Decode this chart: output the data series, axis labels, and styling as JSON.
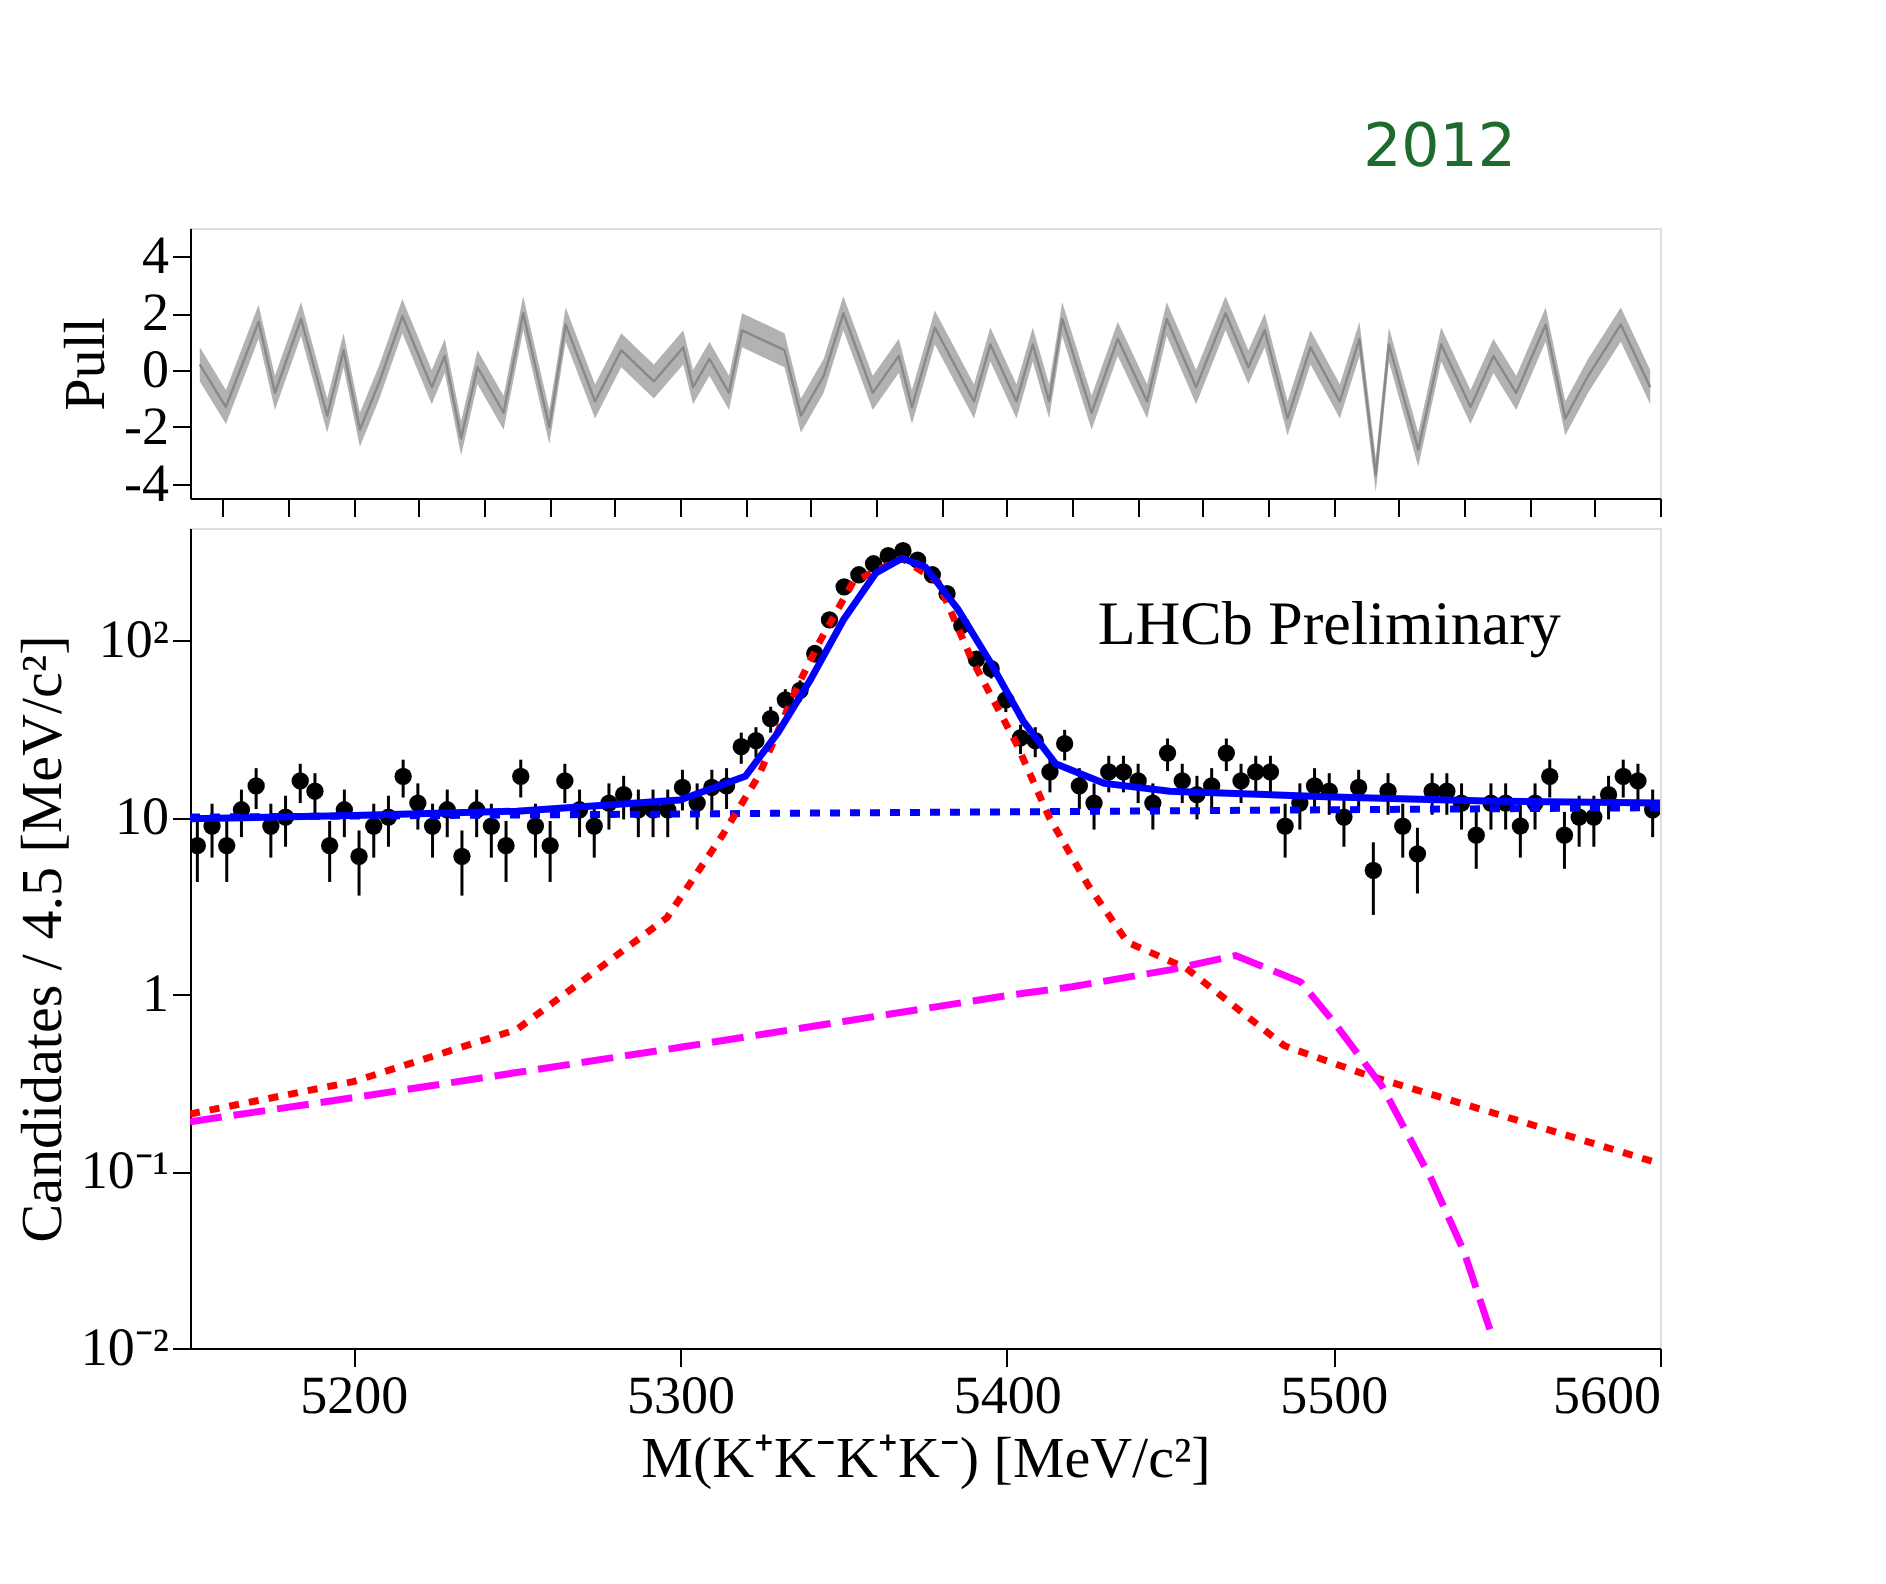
{
  "chart_data": [
    {
      "type": "line",
      "ylabel": "Pull",
      "annotations": [
        "2012"
      ],
      "xlim": [
        5150,
        5600
      ],
      "ylim": [
        -4.5,
        5
      ],
      "yticks": [
        -4,
        -2,
        0,
        2,
        4
      ],
      "tick_labels": "y",
      "series": [
        {
          "color": "#888888",
          "x": [
            5153,
            5161,
            5171,
            5176,
            5184,
            5192,
            5197,
            5202,
            5208,
            5215,
            5224,
            5228,
            5233,
            5238,
            5246,
            5252,
            5260,
            5265,
            5274,
            5282,
            5292,
            5301,
            5304,
            5309,
            5315,
            5319,
            5332,
            5337,
            5344,
            5350,
            5359,
            5367,
            5371,
            5378,
            5390,
            5395,
            5403,
            5408,
            5413,
            5417,
            5426,
            5434,
            5443,
            5449,
            5458,
            5467,
            5474,
            5479,
            5486,
            5493,
            5502,
            5508,
            5513,
            5517,
            5526,
            5533,
            5542,
            5549,
            5556,
            5565,
            5571,
            5578,
            5588,
            5597
          ],
          "values": [
            0.2,
            -1.3,
            1.7,
            -0.8,
            1.8,
            -1.6,
            0.7,
            -2.1,
            -0.4,
            1.9,
            -0.6,
            0.5,
            -2.4,
            0.1,
            -1.5,
            2.0,
            -2.0,
            1.6,
            -1.1,
            0.7,
            -0.4,
            0.8,
            -0.6,
            0.4,
            -0.8,
            1.4,
            0.7,
            -1.6,
            -0.2,
            2.0,
            -0.8,
            0.5,
            -1.3,
            1.5,
            -1.1,
            0.9,
            -1.1,
            0.9,
            -1.1,
            1.8,
            -1.5,
            1.1,
            -1.1,
            1.8,
            -0.6,
            2.0,
            0.1,
            1.4,
            -1.7,
            0.8,
            -1.1,
            1.1,
            -3.7,
            0.9,
            -2.8,
            0.9,
            -1.3,
            0.5,
            -0.8,
            1.6,
            -1.7,
            -0.2,
            1.6,
            -0.6
          ],
          "lower": [
            -0.4,
            -1.9,
            1.1,
            -1.4,
            1.2,
            -2.2,
            0.1,
            -2.7,
            -1.0,
            1.3,
            -1.2,
            -0.1,
            -3.0,
            -0.5,
            -2.1,
            1.4,
            -2.6,
            1.0,
            -1.7,
            0.1,
            -1.0,
            0.2,
            -1.2,
            -0.2,
            -1.4,
            0.8,
            0.1,
            -2.2,
            -0.8,
            1.4,
            -1.4,
            -0.1,
            -1.9,
            0.9,
            -1.7,
            0.3,
            -1.7,
            0.3,
            -1.7,
            1.2,
            -2.1,
            0.5,
            -1.7,
            1.2,
            -1.2,
            1.4,
            -0.5,
            0.8,
            -2.3,
            0.2,
            -1.7,
            0.5,
            -4.3,
            0.3,
            -3.4,
            0.3,
            -1.9,
            -0.1,
            -1.4,
            1.0,
            -2.3,
            -0.8,
            1.0,
            -1.2
          ],
          "upper": [
            0.8,
            -0.7,
            2.3,
            -0.2,
            2.4,
            -1.0,
            1.3,
            -1.5,
            0.2,
            2.5,
            0.0,
            1.1,
            -1.8,
            0.7,
            -0.9,
            2.6,
            -1.4,
            2.2,
            -0.5,
            1.3,
            0.2,
            1.4,
            0.0,
            1.0,
            -0.2,
            2.0,
            1.3,
            -1.0,
            0.4,
            2.6,
            -0.2,
            1.1,
            -0.7,
            2.1,
            -0.5,
            1.5,
            -0.5,
            1.5,
            -0.5,
            2.4,
            -0.9,
            1.7,
            -0.5,
            2.4,
            0.0,
            2.6,
            0.7,
            2.0,
            -1.1,
            1.4,
            -0.5,
            1.7,
            -3.1,
            1.5,
            -2.2,
            1.5,
            -0.7,
            1.1,
            -0.2,
            2.2,
            -1.1,
            0.4,
            2.2,
            0.0
          ]
        }
      ]
    },
    {
      "type": "line",
      "xlabel": "M(K⁺K⁻K⁺K⁻) [MeV/c²]",
      "ylabel": "Candidates / 4.5 [MeV/c²]",
      "log": true,
      "annotations": [
        "LHCb Preliminary"
      ],
      "xlim": [
        5150,
        5600
      ],
      "xticks": [
        5200,
        5300,
        5400,
        5500,
        5600
      ],
      "ylim": [
        0.01,
        430
      ],
      "yticks": [
        {
          "value": 0.01,
          "label": "10⁻²"
        },
        {
          "value": 0.1,
          "label": "10⁻¹"
        },
        1,
        10,
        {
          "value": 100,
          "label": "10²"
        }
      ],
      "series": [
        {
          "type": "scatter",
          "marker": "circle",
          "color": "#000000",
          "x": [
            5152.25,
            5156.75,
            5161.25,
            5165.75,
            5170.25,
            5174.75,
            5179.25,
            5183.75,
            5188.25,
            5192.75,
            5197.25,
            5201.75,
            5206.25,
            5210.75,
            5215.25,
            5219.75,
            5224.25,
            5228.75,
            5233.25,
            5237.75,
            5242.25,
            5246.75,
            5251.25,
            5255.75,
            5260.25,
            5264.75,
            5269.25,
            5273.75,
            5278.25,
            5282.75,
            5287.25,
            5291.75,
            5296.25,
            5300.75,
            5305.25,
            5309.75,
            5314.25,
            5318.75,
            5323.25,
            5327.75,
            5332.25,
            5336.75,
            5341.25,
            5345.75,
            5350.25,
            5354.75,
            5359.25,
            5363.75,
            5368.25,
            5372.75,
            5377.25,
            5381.75,
            5386.25,
            5390.75,
            5395.25,
            5399.75,
            5404.25,
            5408.75,
            5413.25,
            5417.75,
            5422.25,
            5426.75,
            5431.25,
            5435.75,
            5440.25,
            5444.75,
            5449.25,
            5453.75,
            5458.25,
            5462.75,
            5467.25,
            5471.75,
            5476.25,
            5480.75,
            5485.25,
            5489.75,
            5494.25,
            5498.75,
            5503.25,
            5507.75,
            5512.25,
            5516.75,
            5521.25,
            5525.75,
            5530.25,
            5534.75,
            5539.25,
            5543.75,
            5548.25,
            5552.75,
            5557.25,
            5561.75,
            5566.25,
            5570.75,
            5575.25,
            5579.75,
            5584.25,
            5588.75,
            5593.25,
            5597.75
          ],
          "values": [
            6.9,
            8.9,
            6.9,
            11,
            15,
            8.9,
            10,
            16,
            14,
            6.9,
            11,
            6,
            8.9,
            10,
            17,
            12,
            8.9,
            11,
            6,
            11,
            8.9,
            6.9,
            17,
            8.9,
            6.9,
            16,
            11,
            8.9,
            12,
            13.4,
            11,
            11,
            11,
            14.7,
            12,
            14.7,
            15,
            25,
            27,
            36,
            46,
            52,
            84,
            130,
            200,
            234,
            270,
            300,
            320,
            283,
            234,
            183,
            121,
            78,
            69,
            46,
            28,
            27,
            18,
            26,
            15,
            12,
            18,
            18,
            16,
            12,
            23,
            16,
            13.4,
            15,
            23,
            16,
            18,
            18,
            8.9,
            12,
            15,
            14,
            10,
            14.7,
            5,
            14,
            8.9,
            6.2,
            14,
            14,
            12,
            7.9,
            12,
            12,
            8.9,
            12,
            17,
            7.9,
            10,
            10,
            13.4,
            17,
            16,
            11
          ],
          "errors": [
            2.6,
            3,
            2.6,
            3.3,
            3.9,
            3,
            3.2,
            4,
            3.7,
            2.6,
            3.3,
            2.4,
            3,
            3.2,
            4.1,
            3.5,
            3,
            3.3,
            2.4,
            3.3,
            3,
            2.6,
            4.1,
            3,
            2.6,
            4,
            3.3,
            3,
            3.5,
            3.7,
            3.3,
            3.3,
            3.3,
            3.8,
            3.5,
            3.8,
            3.9,
            5,
            5.2,
            6,
            6.8,
            7.2,
            9.2,
            11.4,
            14,
            15.3,
            16.4,
            17.3,
            17.9,
            16.8,
            15.3,
            13.5,
            11,
            8.8,
            8.3,
            6.8,
            5.3,
            5.2,
            4.2,
            5.1,
            3.9,
            3.5,
            4.2,
            4.2,
            4,
            3.5,
            4.8,
            4,
            3.7,
            3.9,
            4.8,
            4,
            4.2,
            4.2,
            3,
            3.5,
            3.9,
            3.7,
            3.2,
            3.8,
            2.2,
            3.7,
            3,
            2.5,
            3.7,
            3.7,
            3.5,
            2.8,
            3.5,
            3.5,
            3,
            3.5,
            4.1,
            2.8,
            3.2,
            3.2,
            3.7,
            4.1,
            4,
            3.3
          ]
        },
        {
          "color": "#0000ff",
          "line_style": "dotted",
          "x": [
            5150,
            5600
          ],
          "values": [
            10,
            11.3
          ]
        },
        {
          "color": "#ff0000",
          "line_style": "dotted",
          "x": [
            5150,
            5200,
            5250,
            5272,
            5296,
            5313,
            5324,
            5336,
            5343,
            5353,
            5368,
            5379,
            5389,
            5403,
            5413,
            5425,
            5437,
            5455,
            5485,
            5510,
            5550,
            5600
          ],
          "values": [
            0.21,
            0.32,
            0.63,
            1.26,
            2.7,
            7.9,
            17,
            55,
            100,
            213,
            290,
            213,
            80,
            26,
            10,
            4.1,
            1.96,
            1.4,
            0.51,
            0.35,
            0.21,
            0.11
          ]
        },
        {
          "color": "#ff00ff",
          "line_style": "dashed",
          "x": [
            5150,
            5200,
            5250,
            5300,
            5350,
            5400,
            5420,
            5450,
            5470,
            5490,
            5500,
            5515,
            5530,
            5540,
            5548
          ],
          "values": [
            0.19,
            0.26,
            0.36,
            0.5,
            0.7,
            0.98,
            1.1,
            1.37,
            1.65,
            1.17,
            0.7,
            0.3,
            0.09,
            0.035,
            0.0126
          ]
        },
        {
          "color": "#0000ff",
          "line_style": "solid",
          "x": [
            5150,
            5200,
            5250,
            5300,
            5320,
            5330,
            5340,
            5350,
            5360,
            5368,
            5375,
            5385,
            5395,
            5405,
            5415,
            5430,
            5450,
            5500,
            5550,
            5600
          ],
          "values": [
            9.8,
            10.2,
            10.8,
            12.5,
            17,
            30,
            60,
            130,
            240,
            290,
            260,
            150,
            75,
            35,
            20,
            15.5,
            14,
            13,
            12.3,
            12
          ]
        }
      ]
    }
  ]
}
